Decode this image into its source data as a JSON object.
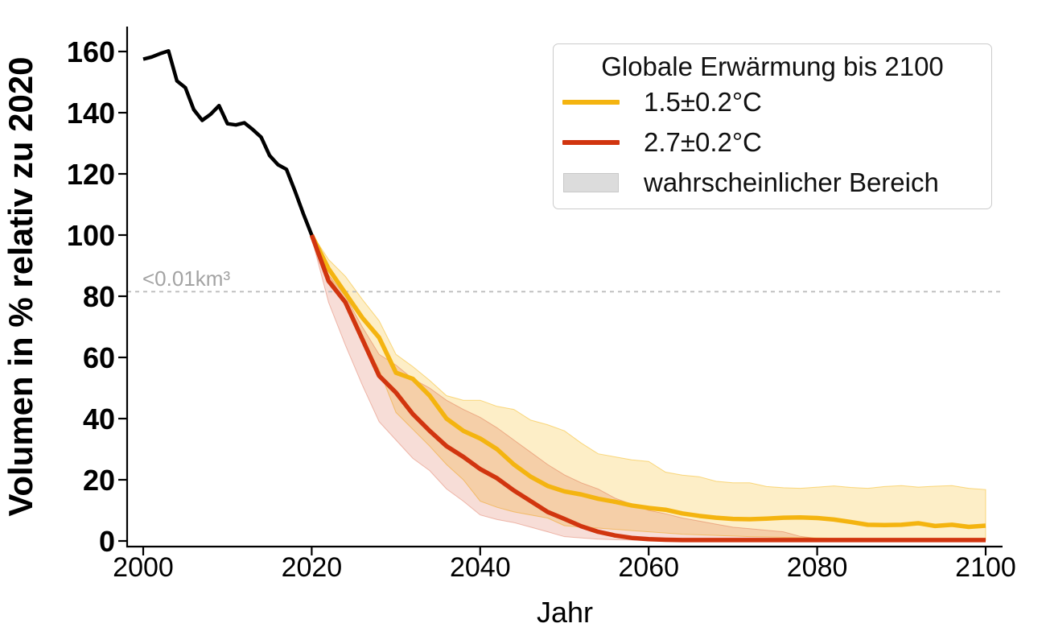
{
  "legend": {
    "title": "Globale Erwärmung bis 2100",
    "items": [
      {
        "label": "1.5±0.2°C",
        "color": "#F4B410",
        "type": "line"
      },
      {
        "label": "2.7±0.2°C",
        "color": "#D1350F",
        "type": "line"
      },
      {
        "label": "wahrscheinlicher Bereich",
        "color": "#DCDCDC",
        "type": "patch"
      }
    ]
  },
  "chart_data": {
    "type": "line",
    "title": "",
    "xlabel": "Jahr",
    "ylabel": "Volumen in % relativ zu 2020",
    "xlim": [
      1998.1,
      2101.9
    ],
    "ylim": [
      -1.8,
      168
    ],
    "xticks": [
      2000,
      2020,
      2040,
      2060,
      2080,
      2100
    ],
    "yticks": [
      0,
      20,
      40,
      60,
      80,
      100,
      120,
      140,
      160
    ],
    "grid": false,
    "legend_position": "upper right",
    "threshold_line": {
      "value": 81.5,
      "label": "<0.01km³",
      "color": "#bcbcbc",
      "style": "dashed"
    },
    "historical": {
      "color": "#000000",
      "years": [
        2000,
        2001,
        2002,
        2003,
        2004,
        2005,
        2006,
        2007,
        2008,
        2009,
        2010,
        2011,
        2012,
        2013,
        2014,
        2015,
        2016,
        2017,
        2018,
        2019,
        2020
      ],
      "values": [
        157.5,
        158.2,
        159.3,
        160.2,
        150.4,
        148.2,
        141,
        137.5,
        139.5,
        142.3,
        136.4,
        136,
        136.7,
        134.5,
        132,
        126,
        123,
        121.5,
        114.5,
        107,
        100
      ]
    },
    "series": [
      {
        "name": "1.5±0.2°C",
        "color": "#F4B410",
        "band_fill": "rgba(245,183,20,0.24)",
        "band_edge": "rgba(245,183,20,0.5)",
        "years": [
          2020,
          2022,
          2024,
          2026,
          2028,
          2030,
          2032,
          2034,
          2036,
          2038,
          2040,
          2042,
          2044,
          2046,
          2048,
          2050,
          2052,
          2054,
          2056,
          2058,
          2060,
          2062,
          2064,
          2066,
          2068,
          2070,
          2072,
          2074,
          2076,
          2078,
          2080,
          2082,
          2084,
          2086,
          2088,
          2090,
          2092,
          2094,
          2096,
          2098,
          2100
        ],
        "values": [
          100,
          89,
          81,
          73,
          66.5,
          55,
          53,
          47.5,
          40,
          36,
          33.5,
          30,
          25,
          21,
          18,
          16.2,
          15.2,
          13.8,
          12.8,
          11.6,
          10.8,
          10.2,
          9,
          8.2,
          7.6,
          7.2,
          7.1,
          7.3,
          7.6,
          7.7,
          7.5,
          7,
          6.2,
          5.3,
          5.2,
          5.3,
          5.8,
          4.9,
          5.3,
          4.6,
          5
        ],
        "band_hi": [
          100.5,
          92,
          86.5,
          79,
          72,
          61,
          57,
          52.5,
          47.5,
          46,
          46,
          44,
          43,
          39.5,
          38,
          36,
          32,
          28.5,
          27.5,
          26.5,
          26,
          22.5,
          21.5,
          21,
          19.5,
          19,
          19,
          17.8,
          17.4,
          17.2,
          17.6,
          18,
          17.5,
          17.2,
          17.8,
          18.1,
          17.6,
          17.9,
          18.1,
          17.2,
          16.8
        ],
        "band_lo": [
          99,
          87,
          78,
          66,
          56,
          42,
          36.5,
          31,
          25,
          20,
          13,
          11,
          9.5,
          8.5,
          7.5,
          5,
          4.5,
          4.2,
          3.8,
          3.4,
          3,
          2.6,
          2.2,
          2,
          1.8,
          1.6,
          1.4,
          1.3,
          1.2,
          1.1,
          1,
          0.9,
          0.9,
          0.8,
          0.8,
          0.7,
          0.7,
          0.6,
          0.6,
          0.5,
          0.5
        ]
      },
      {
        "name": "2.7±0.2°C",
        "color": "#D1350F",
        "band_fill": "rgba(210,53,18,0.17)",
        "band_edge": "rgba(210,53,18,0.3)",
        "years": [
          2020,
          2022,
          2024,
          2026,
          2028,
          2030,
          2032,
          2034,
          2036,
          2038,
          2040,
          2042,
          2044,
          2046,
          2048,
          2050,
          2052,
          2054,
          2056,
          2058,
          2060,
          2062,
          2064,
          2066,
          2068,
          2070,
          2072,
          2074,
          2076,
          2078,
          2080,
          2082,
          2084,
          2086,
          2088,
          2090,
          2092,
          2094,
          2096,
          2098,
          2100
        ],
        "values": [
          100,
          85,
          78,
          66,
          54,
          48.5,
          41.5,
          36,
          31,
          27.5,
          23.5,
          20.5,
          16.5,
          13,
          9.5,
          7.2,
          4.8,
          3,
          1.8,
          1,
          0.6,
          0.4,
          0.3,
          0.3,
          0.3,
          0.3,
          0.3,
          0.3,
          0.3,
          0.3,
          0.3,
          0.3,
          0.3,
          0.3,
          0.3,
          0.3,
          0.3,
          0.3,
          0.3,
          0.3,
          0.3
        ],
        "band_hi": [
          100.5,
          87,
          80,
          70,
          61,
          57.5,
          53,
          50,
          46,
          43,
          40.4,
          37,
          33,
          29,
          25,
          21.6,
          19,
          17,
          14,
          12,
          10,
          8.9,
          7.5,
          6.5,
          5.5,
          4.5,
          4,
          3.5,
          3,
          1.5,
          0.8,
          0.6,
          0.5,
          0.5,
          0.4,
          0.4,
          0.4,
          0.4,
          0.4,
          0.4,
          0.4
        ],
        "band_lo": [
          99,
          78,
          64,
          51,
          39,
          33,
          27,
          23,
          17,
          13,
          8.5,
          7,
          6,
          4.5,
          3,
          1.4,
          1,
          0.6,
          0.4,
          0.3,
          0.25,
          0.2,
          0.2,
          0.2,
          0.2,
          0.2,
          0.2,
          0.2,
          0.2,
          0.2,
          0.2,
          0.2,
          0.2,
          0.2,
          0.2,
          0.2,
          0.2,
          0.2,
          0.2,
          0.2,
          0.2
        ]
      }
    ],
    "band_label": "wahrscheinlicher Bereich"
  }
}
